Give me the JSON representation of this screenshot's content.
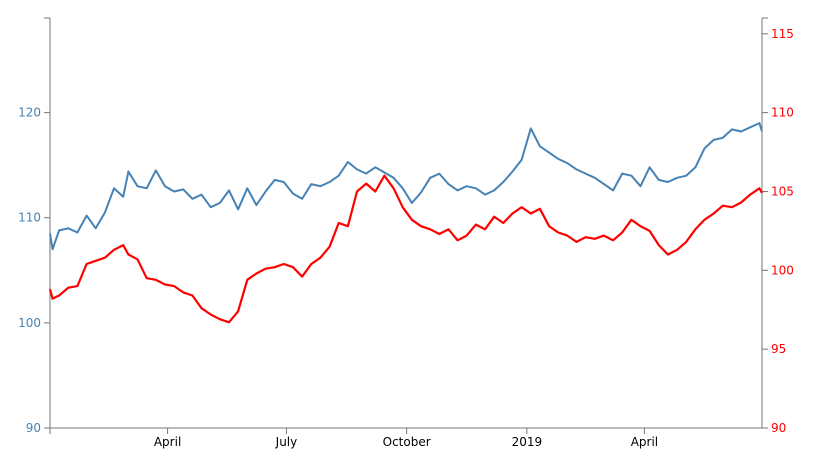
{
  "chart_data": {
    "type": "line",
    "title": "",
    "xlabel": "",
    "ylabel_left": "",
    "ylabel_right": "",
    "x_ticks": [
      "April",
      "July",
      "October",
      "2019",
      "April"
    ],
    "x_tick_dates": [
      "2018-04-01",
      "2018-07-01",
      "2018-10-01",
      "2019-01-01",
      "2019-04-01"
    ],
    "x_range": [
      "2018-01-01",
      "2019-06-30"
    ],
    "y_left": {
      "range": [
        90,
        129
      ],
      "ticks": [
        "90",
        "100",
        "110",
        "120"
      ],
      "color": "#4682b4"
    },
    "y_right": {
      "range": [
        90,
        116
      ],
      "ticks": [
        "90",
        "95",
        "100",
        "105",
        "110",
        "115"
      ],
      "color": "#ff0000"
    },
    "series": [
      {
        "axis": "left",
        "color": "#4682b4",
        "points": [
          [
            "2018-01-01",
            108.5
          ],
          [
            "2018-01-03",
            107.0
          ],
          [
            "2018-01-08",
            108.8
          ],
          [
            "2018-01-15",
            109.0
          ],
          [
            "2018-01-22",
            108.6
          ],
          [
            "2018-01-29",
            110.2
          ],
          [
            "2018-02-05",
            109.0
          ],
          [
            "2018-02-12",
            110.5
          ],
          [
            "2018-02-19",
            112.8
          ],
          [
            "2018-02-26",
            112.0
          ],
          [
            "2018-03-02",
            114.4
          ],
          [
            "2018-03-09",
            113.0
          ],
          [
            "2018-03-16",
            112.8
          ],
          [
            "2018-03-23",
            114.5
          ],
          [
            "2018-03-30",
            113.0
          ],
          [
            "2018-04-06",
            112.5
          ],
          [
            "2018-04-13",
            112.7
          ],
          [
            "2018-04-20",
            111.8
          ],
          [
            "2018-04-27",
            112.2
          ],
          [
            "2018-05-04",
            111.0
          ],
          [
            "2018-05-11",
            111.4
          ],
          [
            "2018-05-18",
            112.6
          ],
          [
            "2018-05-25",
            110.8
          ],
          [
            "2018-06-01",
            112.8
          ],
          [
            "2018-06-08",
            111.2
          ],
          [
            "2018-06-15",
            112.5
          ],
          [
            "2018-06-22",
            113.6
          ],
          [
            "2018-06-29",
            113.4
          ],
          [
            "2018-07-06",
            112.3
          ],
          [
            "2018-07-13",
            111.8
          ],
          [
            "2018-07-20",
            113.2
          ],
          [
            "2018-07-27",
            113.0
          ],
          [
            "2018-08-03",
            113.4
          ],
          [
            "2018-08-10",
            114.0
          ],
          [
            "2018-08-17",
            115.3
          ],
          [
            "2018-08-24",
            114.6
          ],
          [
            "2018-08-31",
            114.2
          ],
          [
            "2018-09-07",
            114.8
          ],
          [
            "2018-09-14",
            114.3
          ],
          [
            "2018-09-21",
            113.8
          ],
          [
            "2018-09-28",
            112.8
          ],
          [
            "2018-10-05",
            111.4
          ],
          [
            "2018-10-12",
            112.4
          ],
          [
            "2018-10-19",
            113.8
          ],
          [
            "2018-10-26",
            114.2
          ],
          [
            "2018-11-02",
            113.2
          ],
          [
            "2018-11-09",
            112.6
          ],
          [
            "2018-11-16",
            113.0
          ],
          [
            "2018-11-23",
            112.8
          ],
          [
            "2018-11-30",
            112.2
          ],
          [
            "2018-12-07",
            112.6
          ],
          [
            "2018-12-14",
            113.4
          ],
          [
            "2018-12-21",
            114.4
          ],
          [
            "2018-12-28",
            115.5
          ],
          [
            "2019-01-04",
            118.5
          ],
          [
            "2019-01-11",
            116.8
          ],
          [
            "2019-01-18",
            116.2
          ],
          [
            "2019-01-25",
            115.6
          ],
          [
            "2019-02-01",
            115.2
          ],
          [
            "2019-02-08",
            114.6
          ],
          [
            "2019-02-15",
            114.2
          ],
          [
            "2019-02-22",
            113.8
          ],
          [
            "2019-03-01",
            113.2
          ],
          [
            "2019-03-08",
            112.6
          ],
          [
            "2019-03-15",
            114.2
          ],
          [
            "2019-03-22",
            114.0
          ],
          [
            "2019-03-29",
            113.0
          ],
          [
            "2019-04-05",
            114.8
          ],
          [
            "2019-04-12",
            113.6
          ],
          [
            "2019-04-19",
            113.4
          ],
          [
            "2019-04-26",
            113.8
          ],
          [
            "2019-05-03",
            114.0
          ],
          [
            "2019-05-10",
            114.8
          ],
          [
            "2019-05-17",
            116.6
          ],
          [
            "2019-05-24",
            117.4
          ],
          [
            "2019-05-31",
            117.6
          ],
          [
            "2019-06-07",
            118.4
          ],
          [
            "2019-06-14",
            118.2
          ],
          [
            "2019-06-21",
            118.6
          ],
          [
            "2019-06-28",
            119.0
          ],
          [
            "2019-06-30",
            118.2
          ]
        ]
      },
      {
        "axis": "right",
        "color": "#ff0000",
        "points": [
          [
            "2018-01-01",
            98.8
          ],
          [
            "2018-01-03",
            98.2
          ],
          [
            "2018-01-08",
            98.4
          ],
          [
            "2018-01-15",
            98.9
          ],
          [
            "2018-01-22",
            99.0
          ],
          [
            "2018-01-29",
            100.4
          ],
          [
            "2018-02-05",
            100.6
          ],
          [
            "2018-02-12",
            100.8
          ],
          [
            "2018-02-19",
            101.3
          ],
          [
            "2018-02-26",
            101.6
          ],
          [
            "2018-03-02",
            101.0
          ],
          [
            "2018-03-09",
            100.7
          ],
          [
            "2018-03-16",
            99.5
          ],
          [
            "2018-03-23",
            99.4
          ],
          [
            "2018-03-30",
            99.1
          ],
          [
            "2018-04-06",
            99.0
          ],
          [
            "2018-04-13",
            98.6
          ],
          [
            "2018-04-20",
            98.4
          ],
          [
            "2018-04-27",
            97.6
          ],
          [
            "2018-05-04",
            97.2
          ],
          [
            "2018-05-11",
            96.9
          ],
          [
            "2018-05-18",
            96.7
          ],
          [
            "2018-05-25",
            97.4
          ],
          [
            "2018-06-01",
            99.4
          ],
          [
            "2018-06-08",
            99.8
          ],
          [
            "2018-06-15",
            100.1
          ],
          [
            "2018-06-22",
            100.2
          ],
          [
            "2018-06-29",
            100.4
          ],
          [
            "2018-07-06",
            100.2
          ],
          [
            "2018-07-13",
            99.6
          ],
          [
            "2018-07-20",
            100.4
          ],
          [
            "2018-07-27",
            100.8
          ],
          [
            "2018-08-03",
            101.5
          ],
          [
            "2018-08-10",
            103.0
          ],
          [
            "2018-08-17",
            102.8
          ],
          [
            "2018-08-24",
            105.0
          ],
          [
            "2018-08-31",
            105.5
          ],
          [
            "2018-09-07",
            105.0
          ],
          [
            "2018-09-14",
            106.0
          ],
          [
            "2018-09-21",
            105.2
          ],
          [
            "2018-09-28",
            104.0
          ],
          [
            "2018-10-05",
            103.2
          ],
          [
            "2018-10-12",
            102.8
          ],
          [
            "2018-10-19",
            102.6
          ],
          [
            "2018-10-26",
            102.3
          ],
          [
            "2018-11-02",
            102.6
          ],
          [
            "2018-11-09",
            101.9
          ],
          [
            "2018-11-16",
            102.2
          ],
          [
            "2018-11-23",
            102.9
          ],
          [
            "2018-11-30",
            102.6
          ],
          [
            "2018-12-07",
            103.4
          ],
          [
            "2018-12-14",
            103.0
          ],
          [
            "2018-12-21",
            103.6
          ],
          [
            "2018-12-28",
            104.0
          ],
          [
            "2019-01-04",
            103.6
          ],
          [
            "2019-01-11",
            103.9
          ],
          [
            "2019-01-18",
            102.8
          ],
          [
            "2019-01-25",
            102.4
          ],
          [
            "2019-02-01",
            102.2
          ],
          [
            "2019-02-08",
            101.8
          ],
          [
            "2019-02-15",
            102.1
          ],
          [
            "2019-02-22",
            102.0
          ],
          [
            "2019-03-01",
            102.2
          ],
          [
            "2019-03-08",
            101.9
          ],
          [
            "2019-03-15",
            102.4
          ],
          [
            "2019-03-22",
            103.2
          ],
          [
            "2019-03-29",
            102.8
          ],
          [
            "2019-04-05",
            102.5
          ],
          [
            "2019-04-12",
            101.6
          ],
          [
            "2019-04-19",
            101.0
          ],
          [
            "2019-04-26",
            101.3
          ],
          [
            "2019-05-03",
            101.8
          ],
          [
            "2019-05-10",
            102.6
          ],
          [
            "2019-05-17",
            103.2
          ],
          [
            "2019-05-24",
            103.6
          ],
          [
            "2019-05-31",
            104.1
          ],
          [
            "2019-06-07",
            104.0
          ],
          [
            "2019-06-14",
            104.3
          ],
          [
            "2019-06-21",
            104.8
          ],
          [
            "2019-06-28",
            105.2
          ],
          [
            "2019-06-30",
            104.9
          ]
        ]
      }
    ]
  }
}
